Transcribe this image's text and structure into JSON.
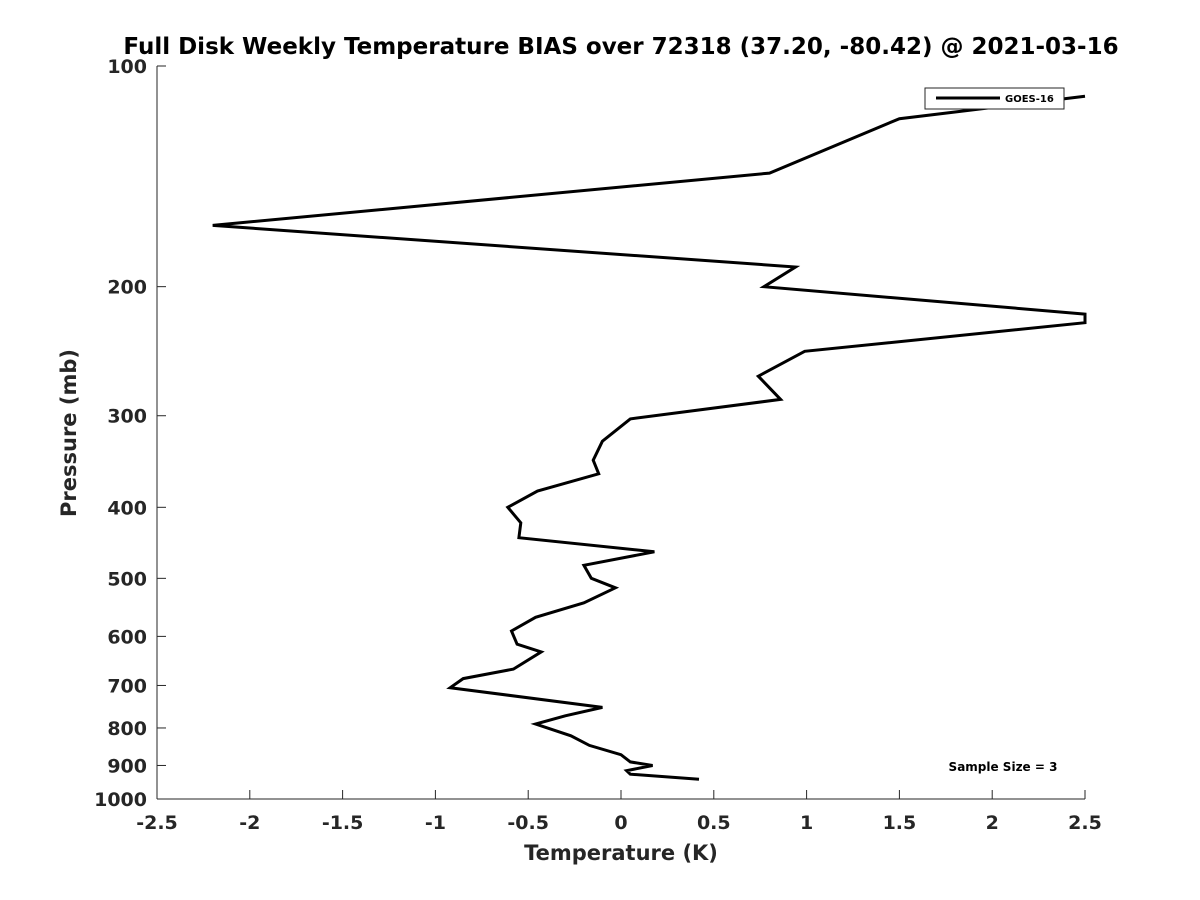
{
  "chart_data": {
    "type": "line",
    "title": "Full Disk Weekly Temperature BIAS over 72318 (37.20, -80.42) @ 2021-03-16",
    "xlabel": "Temperature (K)",
    "ylabel": "Pressure (mb)",
    "xlim": [
      -2.5,
      2.5
    ],
    "ylim": [
      100,
      1000
    ],
    "yscale": "log",
    "y_reversed": true,
    "x_ticks": [
      -2.5,
      -2,
      -1.5,
      -1,
      -0.5,
      0,
      0.5,
      1,
      1.5,
      2,
      2.5
    ],
    "x_tick_labels": [
      "-2.5",
      "-2",
      "-1.5",
      "-1",
      "-0.5",
      "0",
      "0.5",
      "1",
      "1.5",
      "2",
      "2.5"
    ],
    "y_ticks": [
      100,
      200,
      300,
      400,
      500,
      600,
      700,
      800,
      900,
      1000
    ],
    "y_tick_labels": [
      "100",
      "200",
      "300",
      "400",
      "500",
      "600",
      "700",
      "800",
      "900",
      "1000"
    ],
    "grid": false,
    "legend_position": "top-right",
    "annotation": "Sample Size = 3",
    "line_color": "#000000",
    "series": [
      {
        "name": "GOES-16",
        "points": [
          {
            "x": 2.5,
            "y": 110
          },
          {
            "x": 1.5,
            "y": 118
          },
          {
            "x": 0.8,
            "y": 140
          },
          {
            "x": -2.2,
            "y": 165
          },
          {
            "x": 0.94,
            "y": 188
          },
          {
            "x": 0.77,
            "y": 200
          },
          {
            "x": 2.5,
            "y": 218
          },
          {
            "x": 2.5,
            "y": 224
          },
          {
            "x": 0.99,
            "y": 245
          },
          {
            "x": 0.74,
            "y": 265
          },
          {
            "x": 0.86,
            "y": 285
          },
          {
            "x": 0.05,
            "y": 303
          },
          {
            "x": -0.1,
            "y": 325
          },
          {
            "x": -0.15,
            "y": 345
          },
          {
            "x": -0.12,
            "y": 360
          },
          {
            "x": -0.45,
            "y": 380
          },
          {
            "x": -0.61,
            "y": 400
          },
          {
            "x": -0.54,
            "y": 420
          },
          {
            "x": -0.55,
            "y": 440
          },
          {
            "x": 0.18,
            "y": 460
          },
          {
            "x": -0.2,
            "y": 480
          },
          {
            "x": -0.16,
            "y": 500
          },
          {
            "x": -0.03,
            "y": 515
          },
          {
            "x": -0.2,
            "y": 540
          },
          {
            "x": -0.46,
            "y": 565
          },
          {
            "x": -0.59,
            "y": 590
          },
          {
            "x": -0.56,
            "y": 615
          },
          {
            "x": -0.43,
            "y": 630
          },
          {
            "x": -0.58,
            "y": 665
          },
          {
            "x": -0.85,
            "y": 685
          },
          {
            "x": -0.92,
            "y": 705
          },
          {
            "x": -0.1,
            "y": 750
          },
          {
            "x": -0.3,
            "y": 770
          },
          {
            "x": -0.46,
            "y": 790
          },
          {
            "x": -0.27,
            "y": 820
          },
          {
            "x": -0.17,
            "y": 845
          },
          {
            "x": 0.0,
            "y": 870
          },
          {
            "x": 0.05,
            "y": 890
          },
          {
            "x": 0.17,
            "y": 900
          },
          {
            "x": 0.03,
            "y": 915
          },
          {
            "x": 0.05,
            "y": 925
          },
          {
            "x": 0.42,
            "y": 940
          }
        ]
      }
    ]
  }
}
